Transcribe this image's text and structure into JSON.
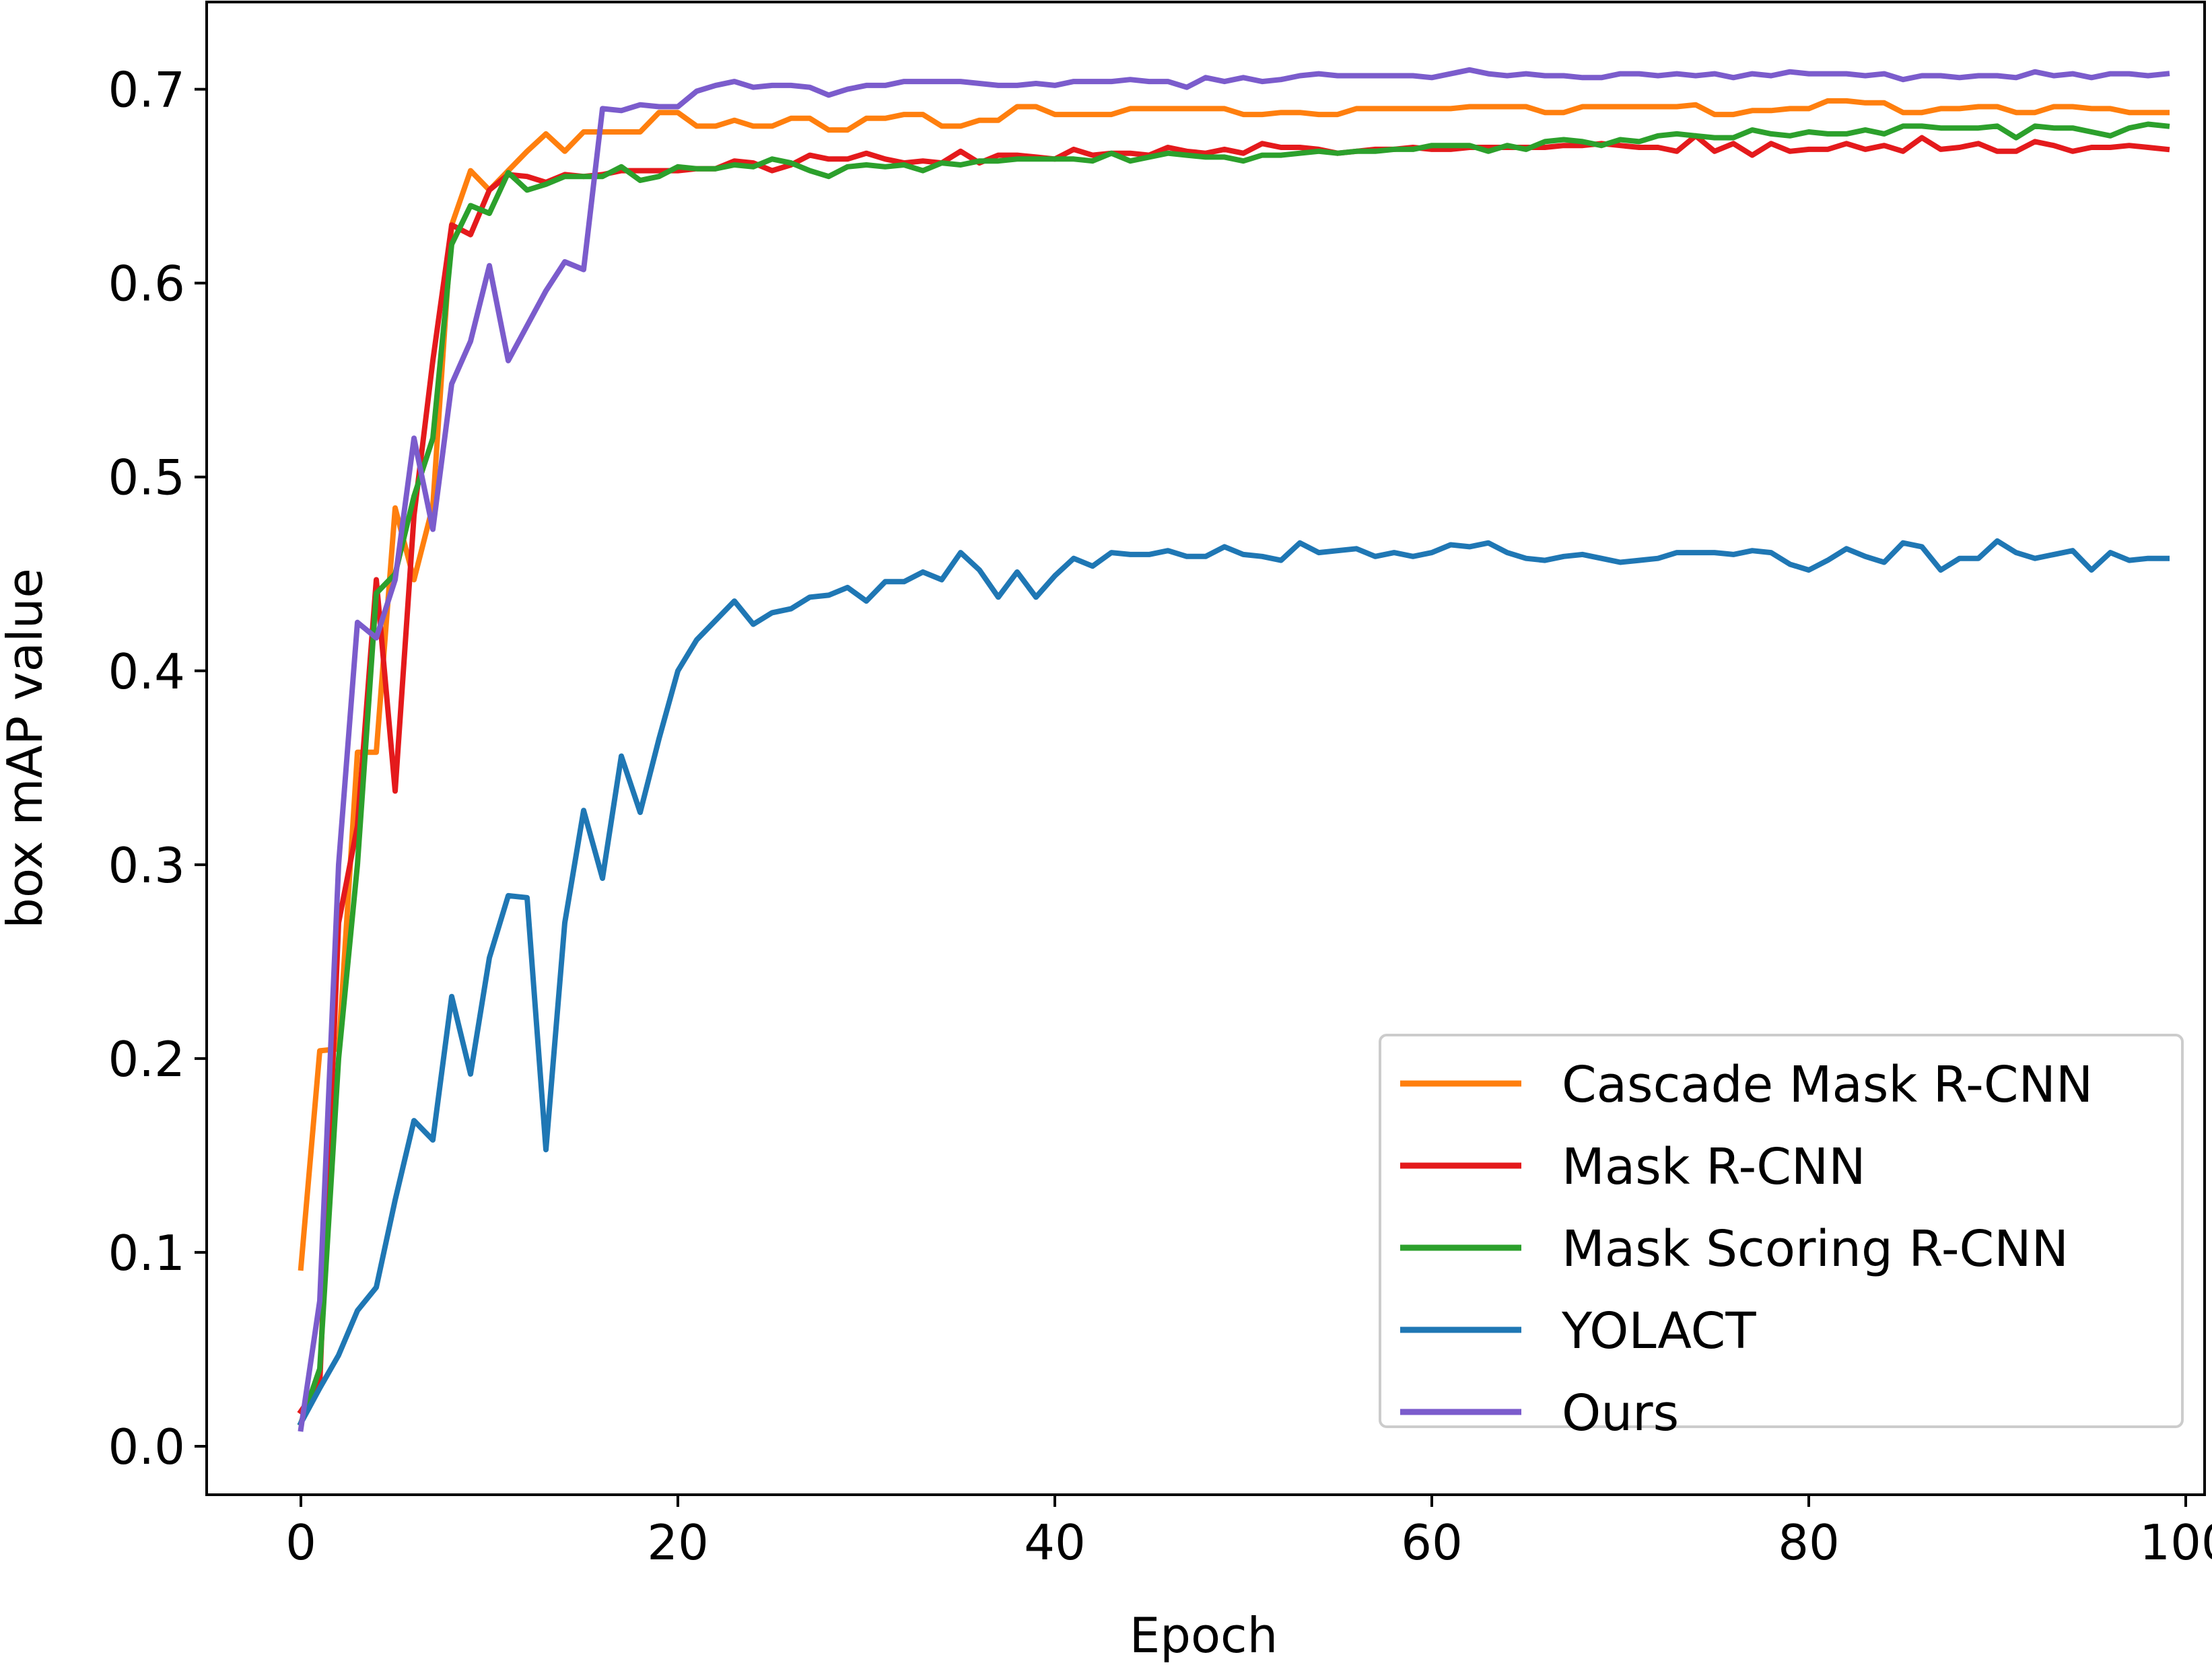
{
  "chart_data": {
    "type": "line",
    "title": "",
    "xlabel": "Epoch",
    "ylabel": "box mAP value",
    "xlim": [
      -5,
      101
    ],
    "ylim": [
      -0.025,
      0.745
    ],
    "xticks": [
      0,
      20,
      40,
      60,
      80,
      100
    ],
    "xtick_labels": [
      "0",
      "20",
      "40",
      "60",
      "80",
      "100"
    ],
    "yticks": [
      0.0,
      0.1,
      0.2,
      0.3,
      0.4,
      0.5,
      0.6,
      0.7
    ],
    "ytick_labels": [
      "0.0",
      "0.1",
      "0.2",
      "0.3",
      "0.4",
      "0.5",
      "0.6",
      "0.7"
    ],
    "grid": false,
    "legend_position": "lower-right",
    "series": [
      {
        "name": "Cascade Mask R-CNN",
        "color": "#ff7f0e",
        "x": [
          0,
          1,
          2,
          3,
          4,
          5,
          6,
          7,
          8,
          9,
          10,
          11,
          12,
          13,
          14,
          15,
          16,
          17,
          18,
          19,
          20,
          21,
          22,
          23,
          24,
          25,
          26,
          27,
          28,
          29,
          30,
          31,
          32,
          33,
          34,
          35,
          36,
          37,
          38,
          39,
          40,
          41,
          42,
          43,
          44,
          45,
          46,
          47,
          48,
          49,
          50,
          51,
          52,
          53,
          54,
          55,
          56,
          57,
          58,
          59,
          60,
          61,
          62,
          63,
          64,
          65,
          66,
          67,
          68,
          69,
          70,
          71,
          72,
          73,
          74,
          75,
          76,
          77,
          78,
          79,
          80,
          81,
          82,
          83,
          84,
          85,
          86,
          87,
          88,
          89,
          90,
          91,
          92,
          93,
          94,
          95,
          96,
          97,
          98,
          99
        ],
        "values": [
          0.092,
          0.204,
          0.205,
          0.358,
          0.358,
          0.484,
          0.447,
          0.485,
          0.63,
          0.658,
          0.648,
          0.658,
          0.668,
          0.677,
          0.668,
          0.678,
          0.678,
          0.678,
          0.678,
          0.688,
          0.688,
          0.681,
          0.681,
          0.684,
          0.681,
          0.681,
          0.685,
          0.685,
          0.679,
          0.679,
          0.685,
          0.685,
          0.687,
          0.687,
          0.681,
          0.681,
          0.684,
          0.684,
          0.691,
          0.691,
          0.687,
          0.687,
          0.687,
          0.687,
          0.69,
          0.69,
          0.69,
          0.69,
          0.69,
          0.69,
          0.687,
          0.687,
          0.688,
          0.688,
          0.687,
          0.687,
          0.69,
          0.69,
          0.69,
          0.69,
          0.69,
          0.69,
          0.691,
          0.691,
          0.691,
          0.691,
          0.688,
          0.688,
          0.691,
          0.691,
          0.691,
          0.691,
          0.691,
          0.691,
          0.692,
          0.687,
          0.687,
          0.689,
          0.689,
          0.69,
          0.69,
          0.694,
          0.694,
          0.693,
          0.693,
          0.688,
          0.688,
          0.69,
          0.69,
          0.691,
          0.691,
          0.688,
          0.688,
          0.691,
          0.691,
          0.69,
          0.69,
          0.688,
          0.688,
          0.688
        ]
      },
      {
        "name": "Mask R-CNN",
        "color": "#e41a1c",
        "x": [
          0,
          1,
          2,
          3,
          4,
          5,
          6,
          7,
          8,
          9,
          10,
          11,
          12,
          13,
          14,
          15,
          16,
          17,
          18,
          19,
          20,
          21,
          22,
          23,
          24,
          25,
          26,
          27,
          28,
          29,
          30,
          31,
          32,
          33,
          34,
          35,
          36,
          37,
          38,
          39,
          40,
          41,
          42,
          43,
          44,
          45,
          46,
          47,
          48,
          49,
          50,
          51,
          52,
          53,
          54,
          55,
          56,
          57,
          58,
          59,
          60,
          61,
          62,
          63,
          64,
          65,
          66,
          67,
          68,
          69,
          70,
          71,
          72,
          73,
          74,
          75,
          76,
          77,
          78,
          79,
          80,
          81,
          82,
          83,
          84,
          85,
          86,
          87,
          88,
          89,
          90,
          91,
          92,
          93,
          94,
          95,
          96,
          97,
          98,
          99
        ],
        "values": [
          0.018,
          0.032,
          0.27,
          0.32,
          0.447,
          0.338,
          0.48,
          0.56,
          0.63,
          0.625,
          0.648,
          0.656,
          0.655,
          0.652,
          0.656,
          0.655,
          0.656,
          0.658,
          0.658,
          0.658,
          0.658,
          0.659,
          0.659,
          0.663,
          0.662,
          0.658,
          0.661,
          0.666,
          0.664,
          0.664,
          0.667,
          0.664,
          0.662,
          0.663,
          0.662,
          0.668,
          0.662,
          0.666,
          0.666,
          0.665,
          0.664,
          0.669,
          0.666,
          0.667,
          0.667,
          0.666,
          0.67,
          0.668,
          0.667,
          0.669,
          0.667,
          0.672,
          0.67,
          0.67,
          0.669,
          0.667,
          0.668,
          0.669,
          0.669,
          0.67,
          0.669,
          0.669,
          0.67,
          0.67,
          0.67,
          0.67,
          0.67,
          0.671,
          0.671,
          0.672,
          0.671,
          0.67,
          0.67,
          0.668,
          0.676,
          0.668,
          0.672,
          0.666,
          0.672,
          0.668,
          0.669,
          0.669,
          0.672,
          0.669,
          0.671,
          0.668,
          0.675,
          0.669,
          0.67,
          0.672,
          0.668,
          0.668,
          0.673,
          0.671,
          0.668,
          0.67,
          0.67,
          0.671,
          0.67,
          0.669
        ]
      },
      {
        "name": "Mask Scoring R-CNN",
        "color": "#2ca02c",
        "x": [
          0,
          1,
          2,
          3,
          4,
          5,
          6,
          7,
          8,
          9,
          10,
          11,
          12,
          13,
          14,
          15,
          16,
          17,
          18,
          19,
          20,
          21,
          22,
          23,
          24,
          25,
          26,
          27,
          28,
          29,
          30,
          31,
          32,
          33,
          34,
          35,
          36,
          37,
          38,
          39,
          40,
          41,
          42,
          43,
          44,
          45,
          46,
          47,
          48,
          49,
          50,
          51,
          52,
          53,
          54,
          55,
          56,
          57,
          58,
          59,
          60,
          61,
          62,
          63,
          64,
          65,
          66,
          67,
          68,
          69,
          70,
          71,
          72,
          73,
          74,
          75,
          76,
          77,
          78,
          79,
          80,
          81,
          82,
          83,
          84,
          85,
          86,
          87,
          88,
          89,
          90,
          91,
          92,
          93,
          94,
          95,
          96,
          97,
          98,
          99
        ],
        "values": [
          0.012,
          0.04,
          0.2,
          0.3,
          0.44,
          0.45,
          0.49,
          0.52,
          0.62,
          0.64,
          0.636,
          0.657,
          0.648,
          0.651,
          0.655,
          0.655,
          0.655,
          0.66,
          0.653,
          0.655,
          0.66,
          0.659,
          0.659,
          0.661,
          0.66,
          0.664,
          0.662,
          0.658,
          0.655,
          0.66,
          0.661,
          0.66,
          0.661,
          0.658,
          0.662,
          0.661,
          0.663,
          0.663,
          0.664,
          0.664,
          0.664,
          0.664,
          0.663,
          0.667,
          0.663,
          0.665,
          0.667,
          0.666,
          0.665,
          0.665,
          0.663,
          0.666,
          0.666,
          0.667,
          0.668,
          0.667,
          0.668,
          0.668,
          0.669,
          0.669,
          0.671,
          0.671,
          0.671,
          0.668,
          0.671,
          0.669,
          0.673,
          0.674,
          0.673,
          0.671,
          0.674,
          0.673,
          0.676,
          0.677,
          0.676,
          0.675,
          0.675,
          0.679,
          0.677,
          0.676,
          0.678,
          0.677,
          0.677,
          0.679,
          0.677,
          0.681,
          0.681,
          0.68,
          0.68,
          0.68,
          0.681,
          0.675,
          0.681,
          0.68,
          0.68,
          0.678,
          0.676,
          0.68,
          0.682,
          0.681
        ]
      },
      {
        "name": "YOLACT",
        "color": "#1f77b4",
        "x": [
          0,
          1,
          2,
          3,
          4,
          5,
          6,
          7,
          8,
          9,
          10,
          11,
          12,
          13,
          14,
          15,
          16,
          17,
          18,
          19,
          20,
          21,
          22,
          23,
          24,
          25,
          26,
          27,
          28,
          29,
          30,
          31,
          32,
          33,
          34,
          35,
          36,
          37,
          38,
          39,
          40,
          41,
          42,
          43,
          44,
          45,
          46,
          47,
          48,
          49,
          50,
          51,
          52,
          53,
          54,
          55,
          56,
          57,
          58,
          59,
          60,
          61,
          62,
          63,
          64,
          65,
          66,
          67,
          68,
          69,
          70,
          71,
          72,
          73,
          74,
          75,
          76,
          77,
          78,
          79,
          80,
          81,
          82,
          83,
          84,
          85,
          86,
          87,
          88,
          89,
          90,
          91,
          92,
          93,
          94,
          95,
          96,
          97,
          98,
          99
        ],
        "values": [
          0.012,
          0.03,
          0.047,
          0.07,
          0.082,
          0.127,
          0.168,
          0.158,
          0.232,
          0.192,
          0.252,
          0.284,
          0.283,
          0.153,
          0.27,
          0.328,
          0.293,
          0.356,
          0.327,
          0.365,
          0.4,
          0.416,
          0.426,
          0.436,
          0.424,
          0.43,
          0.432,
          0.438,
          0.439,
          0.443,
          0.436,
          0.446,
          0.446,
          0.451,
          0.447,
          0.461,
          0.452,
          0.438,
          0.451,
          0.438,
          0.449,
          0.458,
          0.454,
          0.461,
          0.46,
          0.46,
          0.462,
          0.459,
          0.459,
          0.464,
          0.46,
          0.459,
          0.457,
          0.466,
          0.461,
          0.462,
          0.463,
          0.459,
          0.461,
          0.459,
          0.461,
          0.465,
          0.464,
          0.466,
          0.461,
          0.458,
          0.457,
          0.459,
          0.46,
          0.458,
          0.456,
          0.457,
          0.458,
          0.461,
          0.461,
          0.461,
          0.46,
          0.462,
          0.461,
          0.455,
          0.452,
          0.457,
          0.463,
          0.459,
          0.456,
          0.466,
          0.464,
          0.452,
          0.458,
          0.458,
          0.467,
          0.461,
          0.458,
          0.46,
          0.462,
          0.452,
          0.461,
          0.457,
          0.458,
          0.458
        ]
      },
      {
        "name": "Ours",
        "color": "#7b5ccc",
        "x": [
          0,
          1,
          2,
          3,
          4,
          5,
          6,
          7,
          8,
          9,
          10,
          11,
          12,
          13,
          14,
          15,
          16,
          17,
          18,
          19,
          20,
          21,
          22,
          23,
          24,
          25,
          26,
          27,
          28,
          29,
          30,
          31,
          32,
          33,
          34,
          35,
          36,
          37,
          38,
          39,
          40,
          41,
          42,
          43,
          44,
          45,
          46,
          47,
          48,
          49,
          50,
          51,
          52,
          53,
          54,
          55,
          56,
          57,
          58,
          59,
          60,
          61,
          62,
          63,
          64,
          65,
          66,
          67,
          68,
          69,
          70,
          71,
          72,
          73,
          74,
          75,
          76,
          77,
          78,
          79,
          80,
          81,
          82,
          83,
          84,
          85,
          86,
          87,
          88,
          89,
          90,
          91,
          92,
          93,
          94,
          95,
          96,
          97,
          98,
          99
        ],
        "values": [
          0.009,
          0.075,
          0.3,
          0.425,
          0.417,
          0.447,
          0.52,
          0.473,
          0.548,
          0.57,
          0.609,
          0.56,
          0.578,
          0.596,
          0.611,
          0.607,
          0.69,
          0.689,
          0.692,
          0.691,
          0.691,
          0.699,
          0.702,
          0.704,
          0.701,
          0.702,
          0.702,
          0.701,
          0.697,
          0.7,
          0.702,
          0.702,
          0.704,
          0.704,
          0.704,
          0.704,
          0.703,
          0.702,
          0.702,
          0.703,
          0.702,
          0.704,
          0.704,
          0.704,
          0.705,
          0.704,
          0.704,
          0.701,
          0.706,
          0.704,
          0.706,
          0.704,
          0.705,
          0.707,
          0.708,
          0.707,
          0.707,
          0.707,
          0.707,
          0.707,
          0.706,
          0.708,
          0.71,
          0.708,
          0.707,
          0.708,
          0.707,
          0.707,
          0.706,
          0.706,
          0.708,
          0.708,
          0.707,
          0.708,
          0.707,
          0.708,
          0.706,
          0.708,
          0.707,
          0.709,
          0.708,
          0.708,
          0.708,
          0.707,
          0.708,
          0.705,
          0.707,
          0.707,
          0.706,
          0.707,
          0.707,
          0.706,
          0.709,
          0.707,
          0.708,
          0.706,
          0.708,
          0.708,
          0.707,
          0.708
        ]
      }
    ]
  }
}
